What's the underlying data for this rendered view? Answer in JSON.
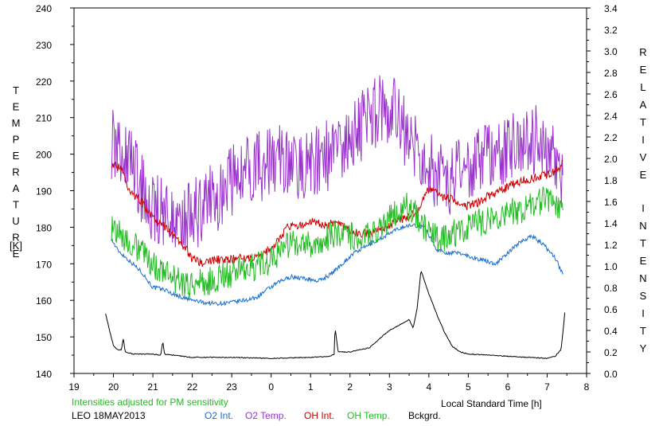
{
  "chart_data": {
    "type": "line",
    "title": "",
    "xlabel": "Local Standard Time [h]",
    "ylabel_left": "TEMPERATURE",
    "ylabel_left_unit": "[K]",
    "ylabel_right": "RELATIVE INTENSITY",
    "xlim": [
      19,
      32
    ],
    "ylim_left": [
      140,
      240
    ],
    "ylim_right": [
      0,
      3.4
    ],
    "x_tick_labels": [
      "19",
      "20",
      "21",
      "22",
      "23",
      "0",
      "1",
      "2",
      "3",
      "4",
      "5",
      "6",
      "7",
      "8"
    ],
    "y_left_tick_labels": [
      "140",
      "150",
      "160",
      "170",
      "180",
      "190",
      "200",
      "210",
      "220",
      "230",
      "240"
    ],
    "y_right_tick_labels": [
      "0.0",
      "0.2",
      "0.4",
      "0.6",
      "0.8",
      "1.0",
      "1.2",
      "1.4",
      "1.6",
      "1.8",
      "2.0",
      "2.2",
      "2.4",
      "2.6",
      "2.8",
      "3.0",
      "3.2",
      "3.4"
    ],
    "grid": false,
    "note": "Intensities adjusted for PM sensitivity",
    "station": "LEO 18MAY2013",
    "series": [
      {
        "name": "O2 Int.",
        "axis": "right",
        "color": "#1a6fd0",
        "noise": 0.02,
        "x": [
          19.95,
          20.1,
          20.4,
          20.7,
          21.0,
          21.3,
          21.5,
          21.8,
          22.0,
          22.3,
          22.6,
          23.0,
          23.3,
          23.6,
          23.9,
          24.2,
          24.5,
          24.9,
          25.2,
          25.5,
          25.8,
          26.1,
          26.4,
          26.7,
          27.0,
          27.3,
          27.6,
          27.9,
          28.2,
          28.5,
          28.8,
          29.1,
          29.4,
          29.7,
          30.0,
          30.3,
          30.6,
          30.9,
          31.2,
          31.4
        ],
        "y": [
          1.25,
          1.15,
          1.05,
          0.95,
          0.8,
          0.78,
          0.74,
          0.7,
          0.68,
          0.66,
          0.65,
          0.66,
          0.68,
          0.7,
          0.78,
          0.85,
          0.9,
          0.88,
          0.86,
          0.92,
          1.02,
          1.12,
          1.18,
          1.24,
          1.3,
          1.36,
          1.38,
          1.36,
          1.15,
          1.12,
          1.12,
          1.08,
          1.05,
          1.02,
          1.12,
          1.22,
          1.28,
          1.2,
          1.08,
          0.92
        ]
      },
      {
        "name": "O2 Temp.",
        "axis": "left",
        "color": "#9933cc",
        "noise": 10,
        "x": [
          19.95,
          20.2,
          20.5,
          20.8,
          21.1,
          21.4,
          21.7,
          22.0,
          22.3,
          22.6,
          22.9,
          23.2,
          23.5,
          23.8,
          24.1,
          24.4,
          24.7,
          25.0,
          25.3,
          25.6,
          25.9,
          26.2,
          26.5,
          26.8,
          27.1,
          27.4,
          27.7,
          28.0,
          28.3,
          28.6,
          28.9,
          29.2,
          29.5,
          29.8,
          30.1,
          30.4,
          30.7,
          31.0,
          31.3,
          31.4
        ],
        "y": [
          203,
          200,
          197,
          188,
          185,
          184,
          182,
          183,
          186,
          188,
          192,
          195,
          196,
          197,
          198,
          198,
          197,
          198,
          199,
          200,
          203,
          206,
          210,
          213,
          213,
          206,
          200,
          196,
          194,
          193,
          195,
          197,
          199,
          201,
          203,
          206,
          204,
          200,
          196,
          192
        ]
      },
      {
        "name": "OH Int.",
        "axis": "right",
        "color": "#cc0000",
        "noise": 0.04,
        "x": [
          19.95,
          20.2,
          20.4,
          20.7,
          21.0,
          21.2,
          21.5,
          21.8,
          22.0,
          22.3,
          22.6,
          22.9,
          23.2,
          23.5,
          23.8,
          24.1,
          24.4,
          24.7,
          25.0,
          25.3,
          25.6,
          25.9,
          26.2,
          26.5,
          26.8,
          27.1,
          27.4,
          27.7,
          28.0,
          28.3,
          28.6,
          28.9,
          29.2,
          29.5,
          29.8,
          30.1,
          30.4,
          30.7,
          31.0,
          31.3,
          31.4
        ],
        "y": [
          1.95,
          1.9,
          1.7,
          1.6,
          1.45,
          1.4,
          1.3,
          1.18,
          1.06,
          1.02,
          1.06,
          1.05,
          1.08,
          1.06,
          1.1,
          1.2,
          1.35,
          1.38,
          1.42,
          1.38,
          1.4,
          1.35,
          1.3,
          1.3,
          1.35,
          1.4,
          1.45,
          1.5,
          1.72,
          1.65,
          1.62,
          1.55,
          1.58,
          1.65,
          1.7,
          1.75,
          1.8,
          1.82,
          1.85,
          1.9,
          1.96
        ]
      },
      {
        "name": "OH Temp.",
        "axis": "left",
        "color": "#22bb22",
        "noise": 4,
        "x": [
          19.95,
          20.2,
          20.5,
          20.8,
          21.1,
          21.4,
          21.7,
          22.0,
          22.3,
          22.6,
          22.9,
          23.2,
          23.5,
          23.8,
          24.1,
          24.4,
          24.7,
          25.0,
          25.3,
          25.6,
          25.9,
          26.2,
          26.5,
          26.8,
          27.1,
          27.4,
          27.7,
          28.0,
          28.3,
          28.6,
          28.9,
          29.2,
          29.5,
          29.8,
          30.1,
          30.4,
          30.7,
          31.0,
          31.3,
          31.4
        ],
        "y": [
          180,
          178,
          175,
          172,
          169,
          167,
          165,
          164,
          165,
          166,
          167,
          168,
          169,
          170,
          172,
          175,
          176,
          175,
          177,
          178,
          178,
          177,
          178,
          180,
          184,
          186,
          183,
          178,
          177,
          178,
          180,
          181,
          182,
          183,
          184,
          185,
          186,
          188,
          186,
          182
        ]
      },
      {
        "name": "Bckgrd.",
        "axis": "right",
        "color": "#000000",
        "noise": 0.004,
        "x": [
          19.8,
          19.9,
          20.0,
          20.1,
          20.2,
          20.25,
          20.3,
          20.5,
          21.0,
          21.2,
          21.25,
          21.3,
          21.5,
          22.0,
          23.0,
          24.0,
          25.0,
          25.5,
          25.6,
          25.62,
          25.7,
          26.0,
          26.5,
          26.8,
          27.0,
          27.3,
          27.5,
          27.6,
          27.7,
          27.8,
          27.9,
          28.0,
          28.2,
          28.4,
          28.6,
          28.8,
          29.0,
          29.5,
          30.0,
          30.5,
          31.0,
          31.2,
          31.35,
          31.4,
          31.45
        ],
        "y": [
          0.56,
          0.4,
          0.26,
          0.22,
          0.22,
          0.32,
          0.2,
          0.18,
          0.18,
          0.17,
          0.3,
          0.18,
          0.17,
          0.15,
          0.15,
          0.14,
          0.15,
          0.16,
          0.18,
          0.43,
          0.2,
          0.2,
          0.24,
          0.34,
          0.4,
          0.46,
          0.5,
          0.42,
          0.6,
          0.96,
          0.85,
          0.74,
          0.55,
          0.38,
          0.25,
          0.2,
          0.18,
          0.17,
          0.16,
          0.15,
          0.14,
          0.16,
          0.22,
          0.38,
          0.58
        ]
      }
    ]
  }
}
